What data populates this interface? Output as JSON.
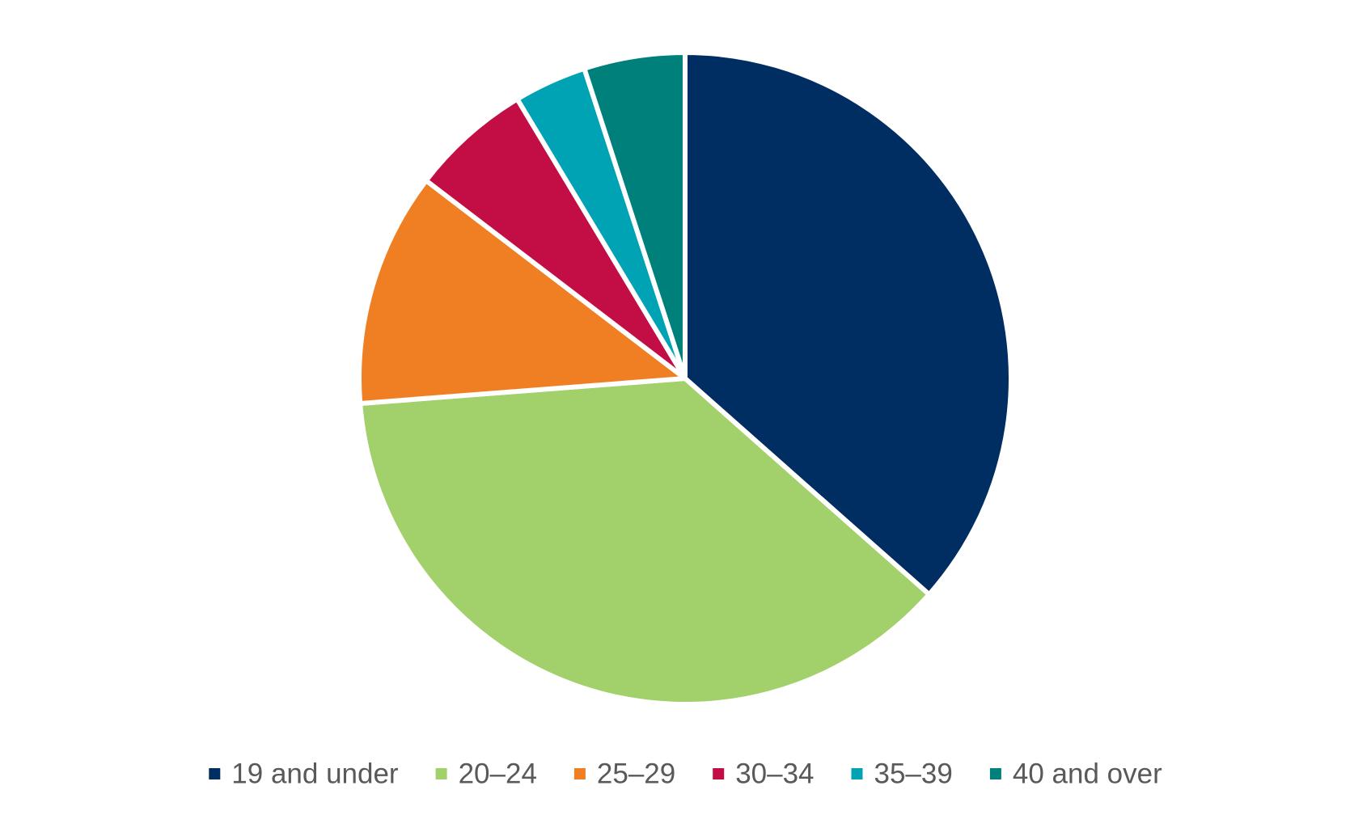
{
  "chart_data": {
    "type": "pie",
    "title": "",
    "categories": [
      "19 and under",
      "20–24",
      "25–29",
      "30–34",
      "35–39",
      "40 and over"
    ],
    "values": [
      36.5,
      37.2,
      11.6,
      6.0,
      3.6,
      5.0
    ],
    "unit": "%",
    "start_angle_deg": 0,
    "direction": "clockwise",
    "legend_position": "bottom",
    "colors": [
      "#002D62",
      "#A2D06B",
      "#F07F24",
      "#C20E45",
      "#00A3B4",
      "#00807A"
    ],
    "separator_color": "#FFFFFF"
  }
}
